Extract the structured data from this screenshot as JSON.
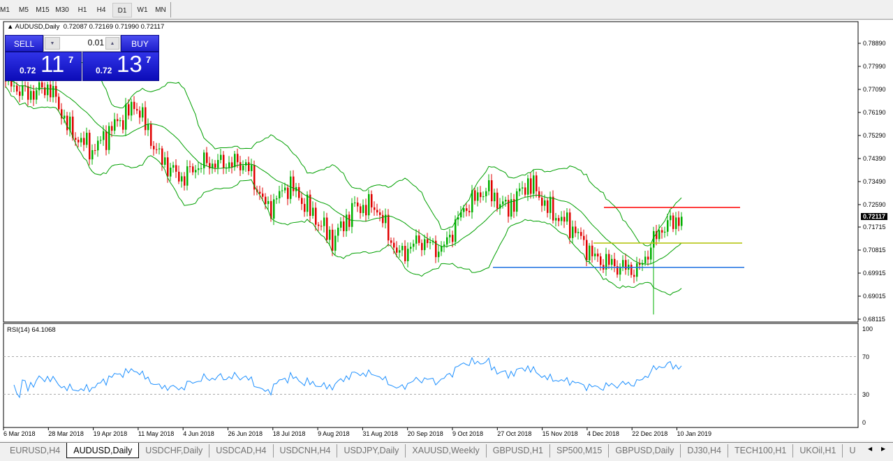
{
  "timeframes": [
    {
      "label": "M1"
    },
    {
      "label": "M5"
    },
    {
      "label": "M15"
    },
    {
      "label": "M30"
    },
    {
      "label": "H1"
    },
    {
      "label": "H4"
    },
    {
      "label": "D1",
      "active": true
    },
    {
      "label": "W1"
    },
    {
      "label": "MN"
    }
  ],
  "legend": {
    "symbol": "AUDUSD,Daily",
    "ohlc": "0.72087 0.72169 0.71990 0.72117"
  },
  "trade": {
    "sell_label": "SELL",
    "buy_label": "BUY",
    "lot": "0.01",
    "sell_prefix": "0.72",
    "sell_big": "11",
    "sell_sup": "7",
    "buy_prefix": "0.72",
    "buy_big": "13",
    "buy_sup": "7"
  },
  "chart_data": {
    "type": "candlestick",
    "price_ticks": [
      "0.78890",
      "0.77990",
      "0.77090",
      "0.76190",
      "0.75290",
      "0.74390",
      "0.73490",
      "0.72590",
      "0.71715",
      "0.70815",
      "0.69915",
      "0.69015",
      "0.68115"
    ],
    "current_price": "0.72117",
    "date_ticks": [
      "6 Mar 2018",
      "28 Mar 2018",
      "19 Apr 2018",
      "11 May 2018",
      "4 Jun 2018",
      "26 Jun 2018",
      "18 Jul 2018",
      "9 Aug 2018",
      "31 Aug 2018",
      "20 Sep 2018",
      "9 Oct 2018",
      "27 Oct 2018",
      "15 Nov 2018",
      "4 Dec 2018",
      "22 Dec 2018",
      "10 Jan 2019"
    ],
    "approx_close_path": [
      0.774,
      0.769,
      0.772,
      0.754,
      0.747,
      0.757,
      0.765,
      0.745,
      0.736,
      0.742,
      0.742,
      0.742,
      0.724,
      0.734,
      0.723,
      0.712,
      0.725,
      0.725,
      0.706,
      0.712,
      0.708,
      0.724,
      0.732,
      0.724,
      0.735,
      0.723,
      0.717,
      0.705,
      0.702,
      0.7,
      0.716,
      0.7212
    ],
    "flash_crash_low": 0.683,
    "indicators": {
      "bollinger": "20,2",
      "rsi_label": "RSI(14) 64.1068",
      "rsi_levels": [
        70,
        30
      ],
      "rsi_ticks": [
        "100",
        "70",
        "30",
        "0"
      ]
    },
    "hlines": [
      {
        "price": 0.7248,
        "color": "#ff0000"
      },
      {
        "price": 0.7109,
        "color": "#b0c000"
      },
      {
        "price": 0.7014,
        "color": "#1e70e0"
      }
    ],
    "colors": {
      "bull": "#00b000",
      "bear": "#e00000",
      "bands": "#00a000",
      "rsi": "#1e90ff"
    }
  },
  "tabs": [
    {
      "label": "EURUSD,H4"
    },
    {
      "label": "AUDUSD,Daily",
      "active": true
    },
    {
      "label": "USDCHF,Daily"
    },
    {
      "label": "USDCAD,H4"
    },
    {
      "label": "USDCNH,H4"
    },
    {
      "label": "USDJPY,Daily"
    },
    {
      "label": "XAUUSD,Weekly"
    },
    {
      "label": "GBPUSD,H1"
    },
    {
      "label": "SP500,M15"
    },
    {
      "label": "GBPUSD,Daily"
    },
    {
      "label": "DJ30,H4"
    },
    {
      "label": "TECH100,H1"
    },
    {
      "label": "UKOil,H1"
    },
    {
      "label": "U"
    }
  ]
}
